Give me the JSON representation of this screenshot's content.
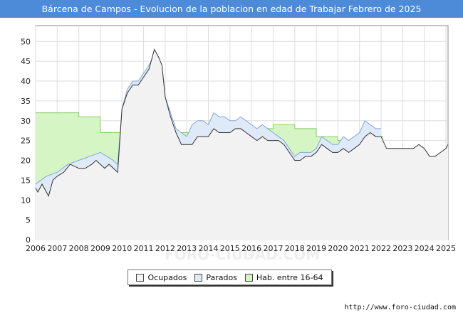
{
  "title": "Bárcena de Campos - Evolucion de la poblacion en edad de Trabajar Febrero de 2025",
  "footer_url": "http://www.foro-ciudad.com",
  "watermark": "FORO-CIUDAD.COM",
  "colors": {
    "title_bg": "#4d8ad8",
    "ocupados_fill": "#f2f2f2",
    "ocupados_line": "#333333",
    "parados_fill": "#dfeaf8",
    "parados_line": "#7ea7d8",
    "hab_fill": "#d6f5c4",
    "hab_line": "#88cc66",
    "grid": "#dddddd"
  },
  "chart_data": {
    "type": "area",
    "title": "Bárcena de Campos - Evolucion de la poblacion en edad de Trabajar Febrero de 2025",
    "xlim": [
      2006,
      2025.1
    ],
    "ylim": [
      0,
      54
    ],
    "x_ticks": [
      "2006",
      "2007",
      "2008",
      "2009",
      "2010",
      "2011",
      "2012",
      "2013",
      "2014",
      "2015",
      "2016",
      "2017",
      "2018",
      "2019",
      "2020",
      "2021",
      "2022",
      "2023",
      "2024",
      "2025"
    ],
    "y_ticks": [
      0,
      5,
      10,
      15,
      20,
      25,
      30,
      35,
      40,
      45,
      50
    ],
    "legend": [
      {
        "key": "ocupados",
        "label": "Ocupados"
      },
      {
        "key": "parados",
        "label": "Parados"
      },
      {
        "key": "hab",
        "label": "Hab. entre 16-64"
      }
    ],
    "series": [
      {
        "name": "Hab. entre 16-64",
        "key": "hab",
        "x": [
          2006,
          2007,
          2008,
          2009,
          2010,
          2013,
          2014,
          2015,
          2016,
          2017,
          2018,
          2019,
          2020,
          2021,
          2022
        ],
        "values": [
          32,
          32,
          31,
          27,
          27,
          27,
          28,
          28,
          28,
          29,
          28,
          26,
          25,
          25,
          26
        ]
      },
      {
        "name": "Parados",
        "key": "parados",
        "x": [
          2006,
          2006.5,
          2007,
          2007.5,
          2008,
          2008.5,
          2009,
          2009.3,
          2009.6,
          2009.8,
          2010,
          2010.25,
          2010.5,
          2010.75,
          2011,
          2011.25,
          2011.35,
          2011.5,
          2011.7,
          2011.85,
          2012,
          2012.25,
          2012.5,
          2012.75,
          2013,
          2013.25,
          2013.5,
          2013.75,
          2014,
          2014.25,
          2014.5,
          2014.75,
          2015,
          2015.25,
          2015.5,
          2015.75,
          2016,
          2016.25,
          2016.5,
          2016.75,
          2017,
          2017.25,
          2017.5,
          2017.75,
          2018,
          2018.25,
          2018.5,
          2018.75,
          2019,
          2019.25,
          2019.5,
          2019.75,
          2020,
          2020.25,
          2020.5,
          2020.75,
          2021,
          2021.25,
          2021.5,
          2021.75,
          2022
        ],
        "values": [
          14,
          16,
          17,
          19,
          20,
          21,
          22,
          21,
          20,
          19,
          33,
          38,
          40,
          40,
          42,
          44,
          45,
          47,
          46,
          44,
          36,
          32,
          28,
          27,
          26,
          29,
          30,
          30,
          29,
          32,
          31,
          31,
          30,
          30,
          31,
          30,
          29,
          28,
          29,
          28,
          27,
          26,
          25,
          23,
          21,
          22,
          22,
          22,
          23,
          26,
          25,
          24,
          24,
          26,
          25,
          26,
          27,
          30,
          29,
          28,
          28
        ]
      },
      {
        "name": "Ocupados",
        "key": "ocupados",
        "x": [
          2006,
          2006.1,
          2006.3,
          2006.5,
          2006.6,
          2006.8,
          2007,
          2007.3,
          2007.6,
          2008,
          2008.3,
          2008.6,
          2008.8,
          2009,
          2009.2,
          2009.4,
          2009.6,
          2009.8,
          2010,
          2010.25,
          2010.5,
          2010.75,
          2011,
          2011.25,
          2011.35,
          2011.5,
          2011.7,
          2011.85,
          2012,
          2012.25,
          2012.5,
          2012.75,
          2013,
          2013.25,
          2013.5,
          2013.75,
          2014,
          2014.25,
          2014.5,
          2014.75,
          2015,
          2015.25,
          2015.5,
          2015.75,
          2016,
          2016.25,
          2016.5,
          2016.75,
          2017,
          2017.25,
          2017.5,
          2017.75,
          2018,
          2018.25,
          2018.5,
          2018.75,
          2019,
          2019.25,
          2019.5,
          2019.75,
          2020,
          2020.25,
          2020.5,
          2020.75,
          2021,
          2021.25,
          2021.5,
          2021.75,
          2022,
          2022.25,
          2022.5,
          2022.75,
          2023,
          2023.25,
          2023.5,
          2023.75,
          2024,
          2024.25,
          2024.5,
          2024.75,
          2025,
          2025.1
        ],
        "values": [
          13,
          12,
          14,
          12,
          11,
          15,
          16,
          17,
          19,
          18,
          18,
          19,
          20,
          19,
          18,
          19,
          18,
          17,
          33,
          37,
          39,
          39,
          41,
          43,
          45,
          48,
          46,
          44,
          36,
          31,
          27,
          24,
          24,
          24,
          26,
          26,
          26,
          28,
          27,
          27,
          27,
          28,
          28,
          27,
          26,
          25,
          26,
          25,
          25,
          25,
          24,
          22,
          20,
          20,
          21,
          21,
          22,
          24,
          23,
          22,
          22,
          23,
          22,
          23,
          24,
          26,
          27,
          26,
          26,
          23,
          23,
          23,
          23,
          23,
          23,
          24,
          23,
          21,
          21,
          22,
          23,
          24
        ]
      }
    ]
  }
}
